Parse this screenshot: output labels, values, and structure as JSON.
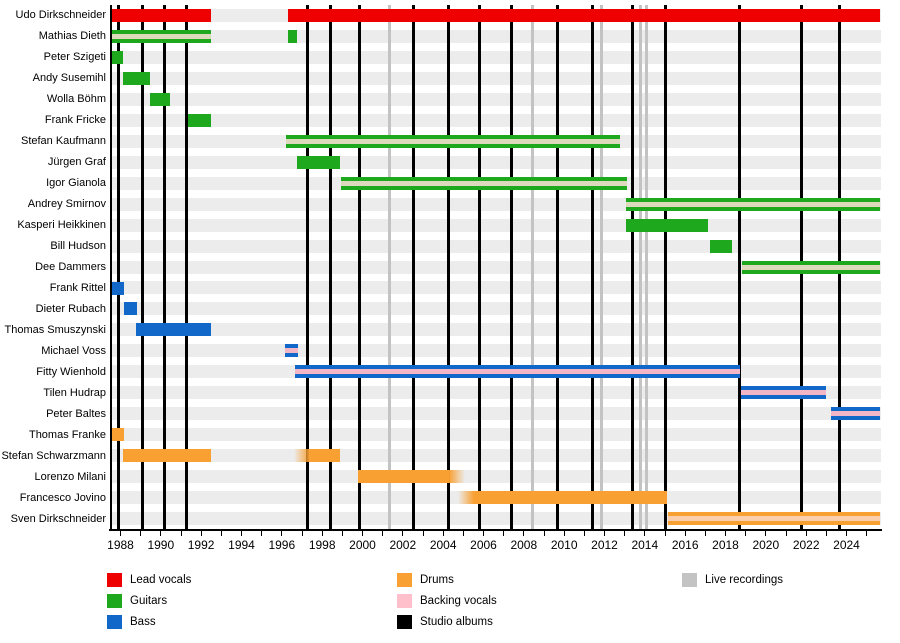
{
  "chart_data": {
    "type": "bar",
    "subtype": "timeline-gantt",
    "title": "",
    "xlabel": "",
    "ylabel": "",
    "grid": "alternating-row-stripes",
    "axis": {
      "x_min": 1987.58,
      "x_max": 2025.66,
      "tick_every_years": 1,
      "label_every_years": 2,
      "tick_first": 1988,
      "tick_last": 2025
    },
    "x_label_years": [
      1988,
      1990,
      1992,
      1994,
      1996,
      1998,
      2000,
      2002,
      2004,
      2006,
      2008,
      2010,
      2012,
      2014,
      2016,
      2018,
      2020,
      2022,
      2024
    ],
    "colors": {
      "red": "#ee0000",
      "green": "#1ea81e",
      "blue": "#1168c8",
      "orange": "#f8a032",
      "pink": "#ffc0cb",
      "black": "#000000",
      "gray": "#c3c3c3",
      "bv_on_green": "#dcd9bd",
      "bv_on_blue": "#f2b6c6",
      "bv_on_orange": "#fbcfae",
      "row_stripe": "#ececec"
    },
    "members": [
      {
        "name": "Udo Dirkschneider",
        "role": "Lead vocals",
        "color": "red",
        "bars": [
          {
            "start": 1987.58,
            "end": 1992.49
          },
          {
            "start": 1996.29,
            "end": 2025.66
          }
        ]
      },
      {
        "name": "Mathias Dieth",
        "role": "Guitars",
        "color": "green",
        "bars": [
          {
            "start": 1987.58,
            "end": 1992.49,
            "bv": true
          },
          {
            "start": 1996.29,
            "end": 1996.74
          }
        ]
      },
      {
        "name": "Peter Szigeti",
        "role": "Guitars",
        "color": "green",
        "bars": [
          {
            "start": 1987.58,
            "end": 1988.12
          }
        ]
      },
      {
        "name": "Andy Susemihl",
        "role": "Guitars",
        "color": "green",
        "bars": [
          {
            "start": 1988.12,
            "end": 1989.49
          }
        ]
      },
      {
        "name": "Wolla Böhm",
        "role": "Guitars",
        "color": "green",
        "bars": [
          {
            "start": 1989.46,
            "end": 1990.45
          }
        ]
      },
      {
        "name": "Frank Fricke",
        "role": "Guitars",
        "color": "green",
        "bars": [
          {
            "start": 1991.35,
            "end": 1992.49
          }
        ]
      },
      {
        "name": "Stefan Kaufmann",
        "role": "Guitars",
        "color": "green",
        "bars": [
          {
            "start": 1996.21,
            "end": 2012.77,
            "bv": true
          }
        ]
      },
      {
        "name": "Jürgen Graf",
        "role": "Guitars",
        "color": "green",
        "bars": [
          {
            "start": 1996.74,
            "end": 1998.88
          }
        ]
      },
      {
        "name": "Igor Gianola",
        "role": "Guitars",
        "color": "green",
        "bars": [
          {
            "start": 1998.93,
            "end": 2013.1,
            "bv": true
          }
        ]
      },
      {
        "name": "Andrey Smirnov",
        "role": "Guitars",
        "color": "green",
        "bars": [
          {
            "start": 2013.07,
            "end": 2025.66,
            "bv": true
          }
        ]
      },
      {
        "name": "Kasperi Heikkinen",
        "role": "Guitars",
        "color": "green",
        "bars": [
          {
            "start": 2013.07,
            "end": 2017.13
          }
        ]
      },
      {
        "name": "Bill Hudson",
        "role": "Guitars",
        "color": "green",
        "bars": [
          {
            "start": 2017.23,
            "end": 2018.3
          }
        ]
      },
      {
        "name": "Dee Dammers",
        "role": "Guitars",
        "color": "green",
        "bars": [
          {
            "start": 2018.8,
            "end": 2025.66,
            "bv": true
          }
        ]
      },
      {
        "name": "Frank Rittel",
        "role": "Bass",
        "color": "blue",
        "bars": [
          {
            "start": 1987.58,
            "end": 1988.17
          }
        ]
      },
      {
        "name": "Dieter Rubach",
        "role": "Bass",
        "color": "blue",
        "bars": [
          {
            "start": 1988.17,
            "end": 1988.8
          }
        ]
      },
      {
        "name": "Thomas Smuszynski",
        "role": "Bass",
        "color": "blue",
        "bars": [
          {
            "start": 1988.77,
            "end": 1992.49
          }
        ]
      },
      {
        "name": "Michael Voss",
        "role": "Bass",
        "color": "blue",
        "bars": [
          {
            "start": 1996.16,
            "end": 1996.79,
            "bv": true
          }
        ]
      },
      {
        "name": "Fitty Wienhold",
        "role": "Bass",
        "color": "blue",
        "bars": [
          {
            "start": 1996.65,
            "end": 2018.72,
            "bv": true
          }
        ]
      },
      {
        "name": "Tilen Hudrap",
        "role": "Bass",
        "color": "blue",
        "bars": [
          {
            "start": 2018.77,
            "end": 2022.99,
            "bv": true
          }
        ]
      },
      {
        "name": "Peter Baltes",
        "role": "Bass",
        "color": "blue",
        "bars": [
          {
            "start": 2023.25,
            "end": 2025.66,
            "bv": true
          }
        ]
      },
      {
        "name": "Thomas Franke",
        "role": "Drums",
        "color": "orange",
        "bars": [
          {
            "start": 1987.53,
            "end": 1988.17
          }
        ]
      },
      {
        "name": "Stefan Schwarzmann",
        "role": "Drums",
        "color": "orange",
        "bars": [
          {
            "start": 1988.12,
            "end": 1992.49
          },
          {
            "start": 1996.6,
            "end": 1998.88,
            "fade": "left"
          }
        ]
      },
      {
        "name": "Lorenzo Milani",
        "role": "Drums",
        "color": "orange",
        "bars": [
          {
            "start": 1999.79,
            "end": 2005.1,
            "fade": "right"
          }
        ]
      },
      {
        "name": "Francesco Jovino",
        "role": "Drums",
        "color": "orange",
        "bars": [
          {
            "start": 2004.75,
            "end": 2015.08,
            "fade": "left"
          }
        ]
      },
      {
        "name": "Sven Dirkschneider",
        "role": "Drums",
        "color": "orange",
        "bars": [
          {
            "start": 2015.13,
            "end": 2025.66,
            "bv": true
          }
        ]
      }
    ],
    "releases": {
      "studio_albums_years": [
        1987.9,
        1989.07,
        1990.16,
        1991.25,
        1997.28,
        1998.39,
        1999.85,
        2002.55,
        2004.27,
        2005.82,
        2007.4,
        2009.66,
        2011.39,
        2013.41,
        2015.03,
        2018.68,
        2021.78,
        2023.67
      ],
      "live_recordings_years": [
        2001.36,
        2008.42,
        2011.87,
        2013.76,
        2014.09
      ]
    },
    "legend": {
      "position": "bottom",
      "columns": [
        [
          {
            "label": "Lead vocals",
            "color": "red"
          },
          {
            "label": "Guitars",
            "color": "green"
          },
          {
            "label": "Bass",
            "color": "blue"
          }
        ],
        [
          {
            "label": "Drums",
            "color": "orange"
          },
          {
            "label": "Backing vocals",
            "color": "pink"
          },
          {
            "label": "Studio albums",
            "color": "black"
          }
        ],
        [
          {
            "label": "Live recordings",
            "color": "gray"
          }
        ]
      ]
    }
  }
}
